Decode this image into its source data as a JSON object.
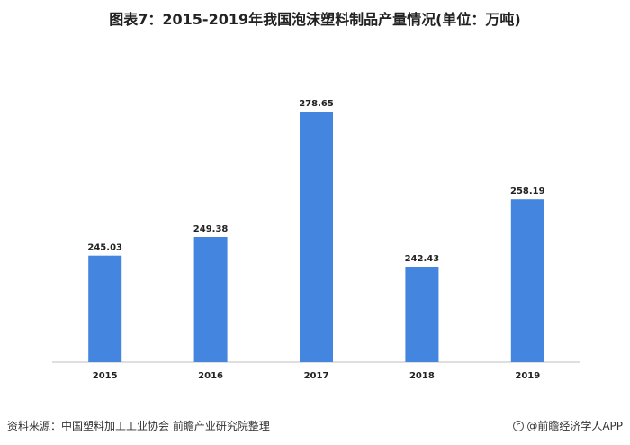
{
  "chart_data": {
    "type": "bar",
    "title": "图表7：2015-2019年我国泡沫塑料制品产量情况(单位：万吨)",
    "categories": [
      "2015",
      "2016",
      "2017",
      "2018",
      "2019"
    ],
    "values": [
      245.03,
      249.38,
      278.65,
      242.43,
      258.19
    ],
    "value_labels": [
      "245.03",
      "249.38",
      "278.65",
      "242.43",
      "258.19"
    ],
    "xlabel": "",
    "ylabel": "",
    "y_axis_visible": false,
    "grid": false,
    "bar_color": "#4485e0"
  },
  "footer": {
    "source": "资料来源：中国塑料加工工业协会 前瞻产业研究院整理",
    "brand": "@前瞻经济学人APP"
  }
}
